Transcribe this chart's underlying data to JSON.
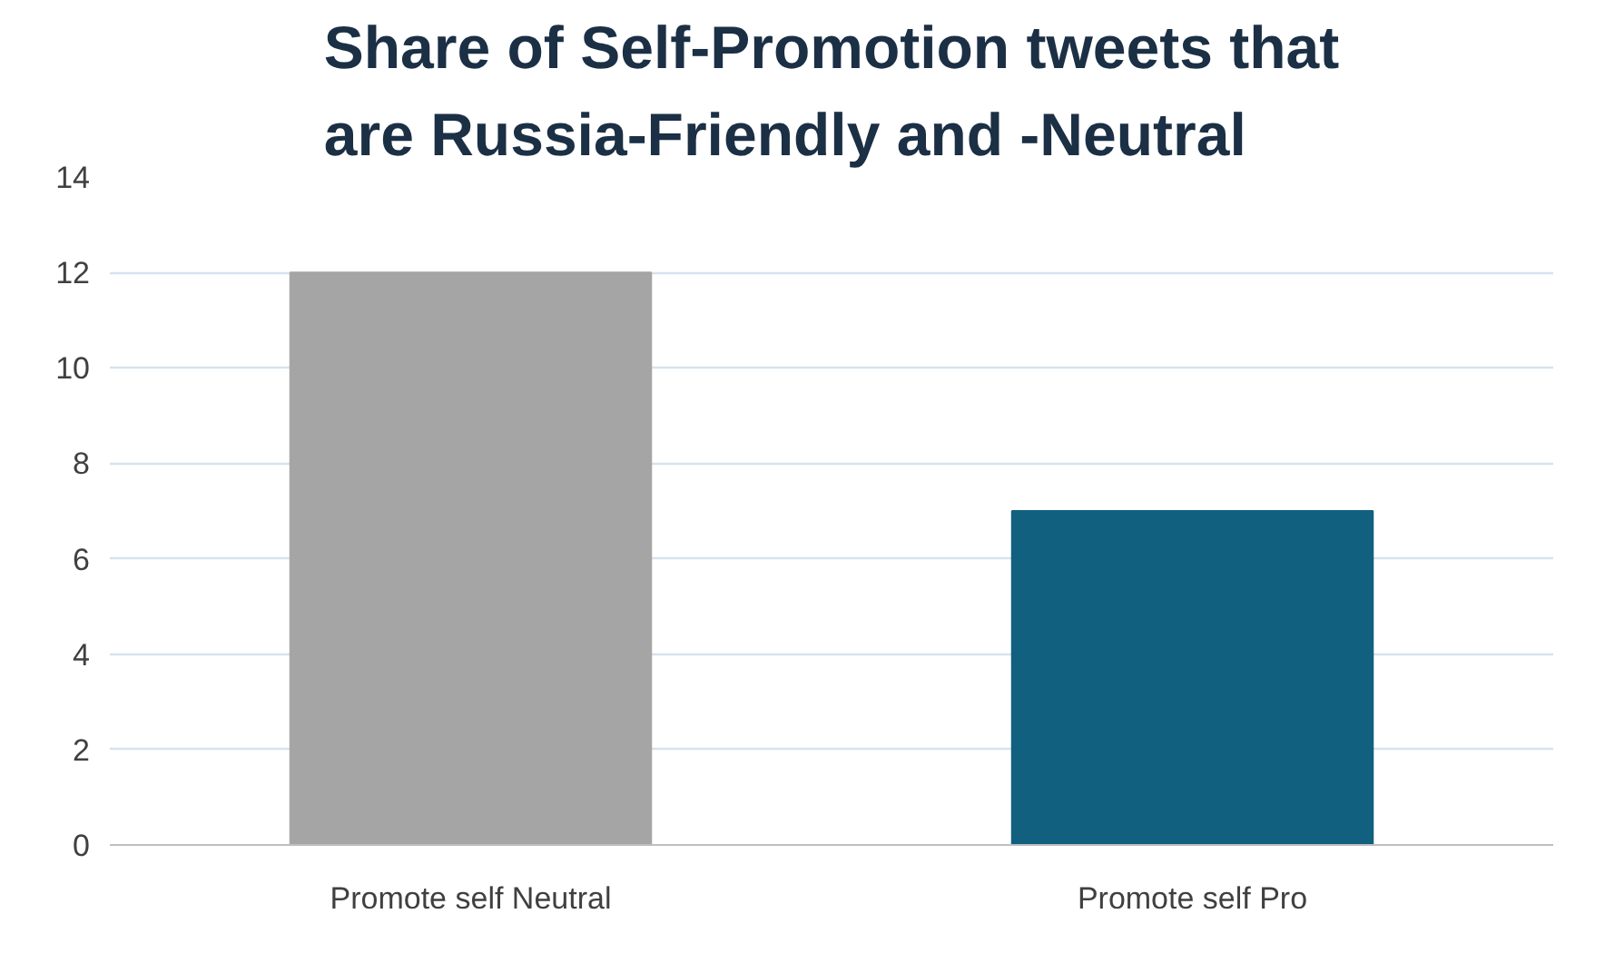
{
  "chart_data": {
    "type": "bar",
    "title": "Share of Self-Promotion tweets that are Russia-Friendly and -Neutral",
    "categories": [
      "Promote self Neutral",
      "Promote self Pro"
    ],
    "values": [
      12,
      7
    ],
    "colors": [
      "#a5a5a5",
      "#11607f"
    ],
    "ylim": [
      0,
      14
    ],
    "yticks": [
      0,
      2,
      4,
      6,
      8,
      10,
      12,
      14
    ],
    "grid": "y"
  }
}
